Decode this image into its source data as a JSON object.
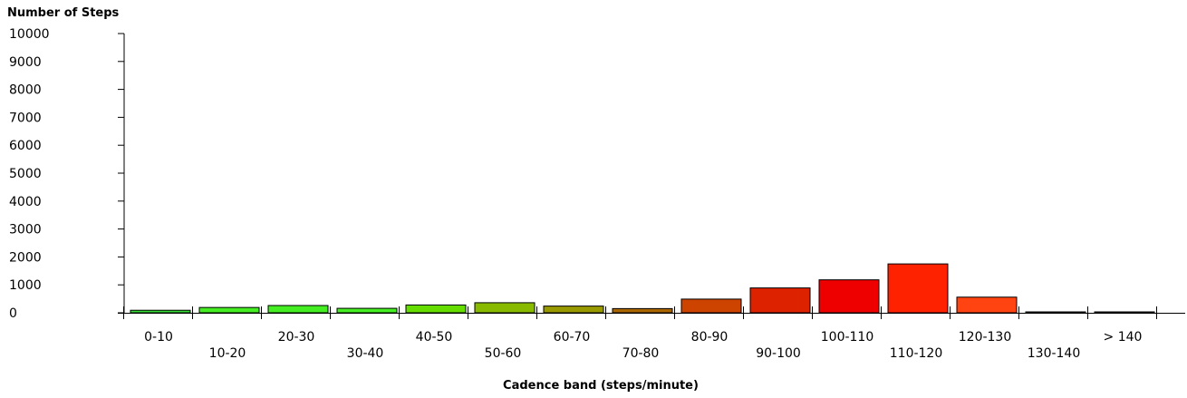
{
  "chart_data": {
    "type": "bar",
    "ylabel": "Number of Steps",
    "xlabel": "Cadence band (steps/minute)",
    "ylim": [
      0,
      10000
    ],
    "yticks": [
      0,
      1000,
      2000,
      3000,
      4000,
      5000,
      6000,
      7000,
      8000,
      9000,
      10000
    ],
    "grid": false,
    "categories": [
      "0-10",
      "10-20",
      "20-30",
      "30-40",
      "40-50",
      "50-60",
      "60-70",
      "70-80",
      "80-90",
      "90-100",
      "100-110",
      "110-120",
      "120-130",
      "130-140",
      "> 140"
    ],
    "values": [
      90,
      190,
      260,
      160,
      280,
      360,
      240,
      150,
      490,
      890,
      1180,
      1750,
      560,
      30,
      10
    ],
    "colors": [
      "#33dd33",
      "#44ee22",
      "#44ee22",
      "#44ee22",
      "#66dd00",
      "#88bb00",
      "#999900",
      "#aa6600",
      "#cc4400",
      "#dd2200",
      "#ee0000",
      "#ff2200",
      "#ff4411",
      "#000000",
      "#000000"
    ]
  }
}
